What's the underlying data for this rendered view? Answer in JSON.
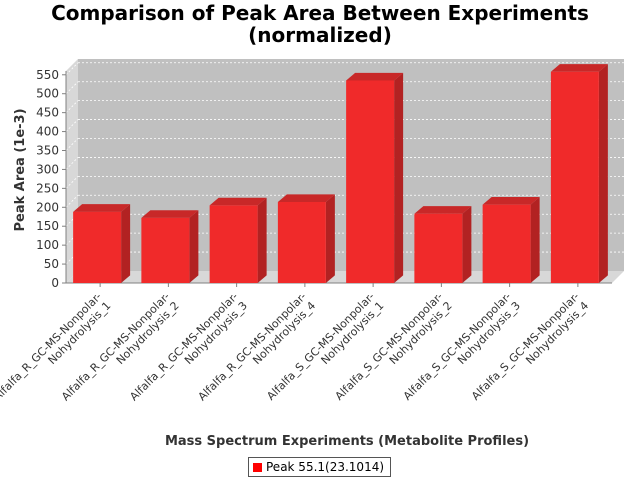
{
  "chart_data": {
    "type": "bar",
    "title_lines": [
      "Comparison of Peak Area Between Experiments",
      "(normalized)"
    ],
    "xlabel": "Mass Spectrum Experiments (Metabolite Profiles)",
    "ylabel": "Peak Area (1e-3)",
    "ylim": [
      0,
      560
    ],
    "yticks": [
      0,
      50,
      100,
      150,
      200,
      250,
      300,
      350,
      400,
      450,
      500,
      550
    ],
    "categories": [
      [
        "Alfalfa_R_GC-MS-Nonpolar-",
        "Nohydrolysis_1"
      ],
      [
        "Alfalfa_R_GC-MS-Nonpolar-",
        "Nohydrolysis_2"
      ],
      [
        "Alfalfa_R_GC-MS-Nonpolar-",
        "Nohydrolysis_3"
      ],
      [
        "Alfalfa_R_GC-MS-Nonpolar-",
        "Nohydrolysis_4"
      ],
      [
        "Alfalfa_S_GC-MS-Nonpolar-",
        "Nohydrolysis_1"
      ],
      [
        "Alfalfa_S_GC-MS-Nonpolar-",
        "Nohydrolysis_2"
      ],
      [
        "Alfalfa_S_GC-MS-Nonpolar-",
        "Nohydrolysis_3"
      ],
      [
        "Alfalfa_S_GC-MS-Nonpolar-",
        "Nohydrolysis_4"
      ]
    ],
    "series": [
      {
        "name": "Peak 55.1(23.1014)",
        "values": [
          188,
          172,
          205,
          214,
          535,
          183,
          207,
          558
        ]
      }
    ],
    "colors": {
      "bar": "#ff0000",
      "plot_background": "#c0c0c0",
      "grid": "#ffffff"
    },
    "grid": true,
    "legend_position": "bottom"
  }
}
